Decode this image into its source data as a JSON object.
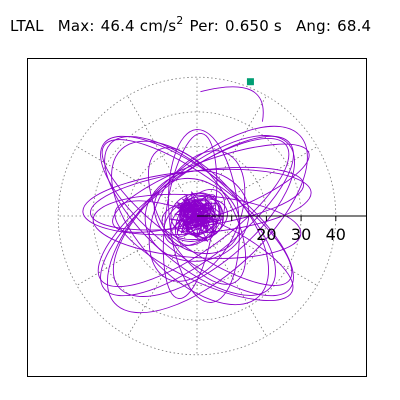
{
  "header": {
    "component": "LTAL",
    "max_label": "Max:",
    "max_value": "46.4",
    "max_unit": "cm/s",
    "max_unit_exp": "2",
    "per_label": "Per:",
    "per_value": "0.650 s",
    "ang_label": "Ang:",
    "ang_value": "68.4"
  },
  "chart_data": {
    "type": "polar-orbit",
    "title": "",
    "radial_ticks": [
      20,
      30,
      40
    ],
    "rings": [
      10,
      20,
      30,
      40
    ],
    "spokes_deg": [
      0,
      30,
      60,
      90,
      120,
      150,
      180,
      210,
      240,
      270,
      300,
      330
    ],
    "max_radius": 46.4,
    "marker": {
      "x": 15.4,
      "y": 38.7,
      "color": "#009e73"
    },
    "trace_color": "#8b00cc",
    "orbit": {
      "dense_core_radius": 6,
      "ellipses": [
        {
          "cx": 0,
          "cy": 0,
          "a": 34,
          "b": 12,
          "angle": 38
        },
        {
          "cx": 2,
          "cy": 0,
          "a": 32,
          "b": 14,
          "angle": 40
        },
        {
          "cx": -1,
          "cy": 1,
          "a": 33,
          "b": 11,
          "angle": 36
        },
        {
          "cx": 3,
          "cy": -1,
          "a": 36,
          "b": 16,
          "angle": 42
        },
        {
          "cx": 0,
          "cy": 0,
          "a": 34,
          "b": 12,
          "angle": -38
        },
        {
          "cx": -2,
          "cy": 0,
          "a": 31,
          "b": 13,
          "angle": -42
        },
        {
          "cx": 0,
          "cy": 1,
          "a": 33,
          "b": 10,
          "angle": -36
        },
        {
          "cx": -2,
          "cy": -2,
          "a": 29,
          "b": 15,
          "angle": -47
        },
        {
          "cx": 0,
          "cy": 4,
          "a": 33,
          "b": 9,
          "angle": 5
        },
        {
          "cx": 0,
          "cy": 5,
          "a": 31,
          "b": 8,
          "angle": 8
        },
        {
          "cx": 0,
          "cy": -3,
          "a": 30,
          "b": 9,
          "angle": -4
        },
        {
          "cx": -2,
          "cy": 0,
          "a": 24,
          "b": 7,
          "angle": 82
        },
        {
          "cx": 2,
          "cy": 0,
          "a": 25,
          "b": 10,
          "angle": 95
        },
        {
          "cx": 0,
          "cy": 0,
          "a": 20,
          "b": 12,
          "angle": 65
        },
        {
          "cx": 0,
          "cy": 0,
          "a": 22,
          "b": 10,
          "angle": -60
        },
        {
          "cx": 4,
          "cy": 8,
          "a": 30,
          "b": 8,
          "angle": 20
        },
        {
          "cx": 2,
          "cy": -10,
          "a": 28,
          "b": 9,
          "angle": -25
        },
        {
          "cx": 0,
          "cy": 0,
          "a": 15,
          "b": 13,
          "angle": 10
        },
        {
          "cx": 0,
          "cy": 0,
          "a": 13,
          "b": 10,
          "angle": -30
        }
      ]
    }
  }
}
